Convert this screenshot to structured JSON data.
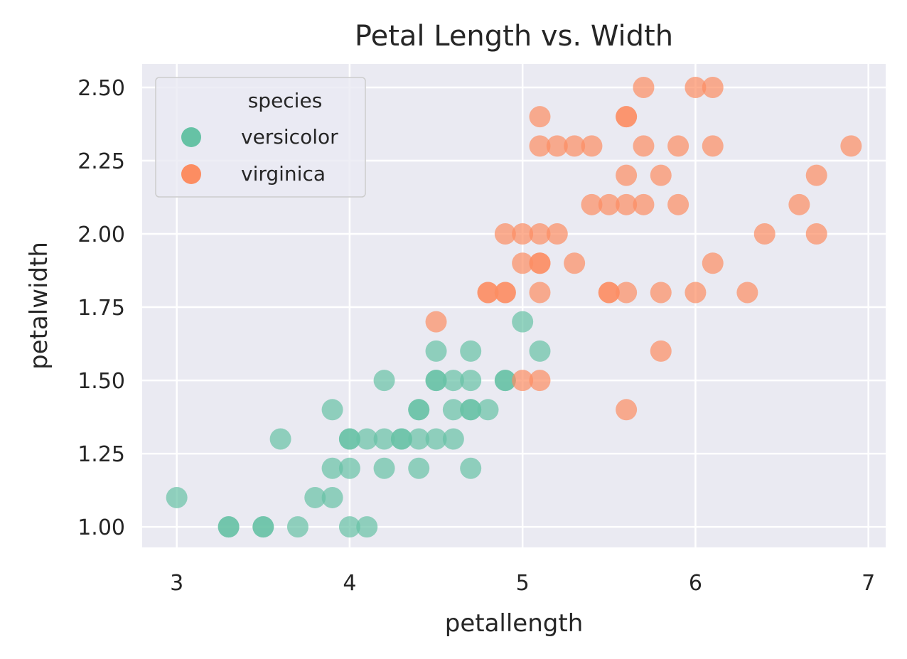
{
  "chart_data": {
    "type": "scatter",
    "title": "Petal Length vs. Width",
    "xlabel": "petallength",
    "ylabel": "petalwidth",
    "xlim": [
      2.8,
      7.1
    ],
    "ylim": [
      0.93,
      2.58
    ],
    "xticks": [
      3,
      4,
      5,
      6,
      7
    ],
    "xtick_labels": [
      "3",
      "4",
      "5",
      "6",
      "7"
    ],
    "yticks": [
      1.0,
      1.25,
      1.5,
      1.75,
      2.0,
      2.25,
      2.5
    ],
    "ytick_labels": [
      "1.00",
      "1.25",
      "1.50",
      "1.75",
      "2.00",
      "2.25",
      "2.50"
    ],
    "grid": true,
    "background": "#eaeaf2",
    "legend": {
      "title": "species",
      "placement": "top-left"
    },
    "series": [
      {
        "name": "versicolor",
        "color": "#66c2a5",
        "points": [
          [
            3.0,
            1.1
          ],
          [
            3.3,
            1.0
          ],
          [
            3.3,
            1.0
          ],
          [
            3.5,
            1.0
          ],
          [
            3.5,
            1.0
          ],
          [
            3.6,
            1.3
          ],
          [
            3.7,
            1.0
          ],
          [
            3.8,
            1.1
          ],
          [
            3.9,
            1.1
          ],
          [
            3.9,
            1.2
          ],
          [
            3.9,
            1.4
          ],
          [
            4.0,
            1.0
          ],
          [
            4.0,
            1.2
          ],
          [
            4.0,
            1.3
          ],
          [
            4.0,
            1.3
          ],
          [
            4.1,
            1.0
          ],
          [
            4.1,
            1.3
          ],
          [
            4.2,
            1.2
          ],
          [
            4.2,
            1.3
          ],
          [
            4.2,
            1.5
          ],
          [
            4.3,
            1.3
          ],
          [
            4.3,
            1.3
          ],
          [
            4.4,
            1.2
          ],
          [
            4.4,
            1.3
          ],
          [
            4.4,
            1.4
          ],
          [
            4.4,
            1.4
          ],
          [
            4.5,
            1.3
          ],
          [
            4.5,
            1.5
          ],
          [
            4.5,
            1.5
          ],
          [
            4.5,
            1.6
          ],
          [
            4.6,
            1.3
          ],
          [
            4.6,
            1.4
          ],
          [
            4.6,
            1.5
          ],
          [
            4.7,
            1.2
          ],
          [
            4.7,
            1.4
          ],
          [
            4.7,
            1.4
          ],
          [
            4.7,
            1.5
          ],
          [
            4.7,
            1.6
          ],
          [
            4.8,
            1.4
          ],
          [
            4.9,
            1.5
          ],
          [
            4.9,
            1.5
          ],
          [
            5.0,
            1.7
          ],
          [
            5.1,
            1.6
          ]
        ]
      },
      {
        "name": "virginica",
        "color": "#fc8d62",
        "points": [
          [
            4.5,
            1.7
          ],
          [
            4.8,
            1.8
          ],
          [
            4.8,
            1.8
          ],
          [
            4.9,
            1.8
          ],
          [
            4.9,
            1.8
          ],
          [
            4.9,
            2.0
          ],
          [
            5.0,
            1.5
          ],
          [
            5.0,
            1.9
          ],
          [
            5.0,
            2.0
          ],
          [
            5.1,
            1.5
          ],
          [
            5.1,
            1.8
          ],
          [
            5.1,
            1.9
          ],
          [
            5.1,
            1.9
          ],
          [
            5.1,
            2.0
          ],
          [
            5.1,
            2.3
          ],
          [
            5.1,
            2.4
          ],
          [
            5.2,
            2.0
          ],
          [
            5.2,
            2.3
          ],
          [
            5.3,
            1.9
          ],
          [
            5.3,
            2.3
          ],
          [
            5.4,
            2.1
          ],
          [
            5.4,
            2.3
          ],
          [
            5.5,
            1.8
          ],
          [
            5.5,
            1.8
          ],
          [
            5.5,
            2.1
          ],
          [
            5.6,
            1.4
          ],
          [
            5.6,
            1.8
          ],
          [
            5.6,
            2.1
          ],
          [
            5.6,
            2.2
          ],
          [
            5.6,
            2.4
          ],
          [
            5.6,
            2.4
          ],
          [
            5.7,
            2.1
          ],
          [
            5.7,
            2.3
          ],
          [
            5.7,
            2.5
          ],
          [
            5.8,
            1.6
          ],
          [
            5.8,
            1.8
          ],
          [
            5.8,
            2.2
          ],
          [
            5.9,
            2.1
          ],
          [
            5.9,
            2.3
          ],
          [
            6.0,
            1.8
          ],
          [
            6.0,
            2.5
          ],
          [
            6.1,
            1.9
          ],
          [
            6.1,
            2.3
          ],
          [
            6.1,
            2.5
          ],
          [
            6.3,
            1.8
          ],
          [
            6.4,
            2.0
          ],
          [
            6.6,
            2.1
          ],
          [
            6.7,
            2.0
          ],
          [
            6.7,
            2.2
          ],
          [
            6.9,
            2.3
          ]
        ]
      }
    ]
  }
}
